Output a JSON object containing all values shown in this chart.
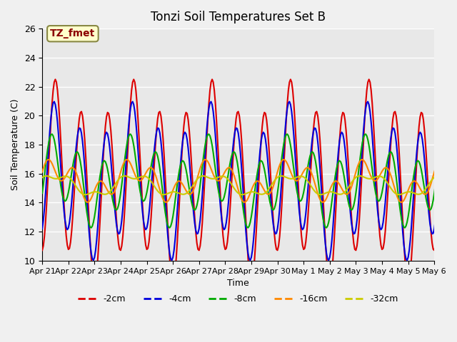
{
  "title": "Tonzi Soil Temperatures Set B",
  "xlabel": "Time",
  "ylabel": "Soil Temperature (C)",
  "annotation": "TZ_fmet",
  "ylim": [
    10,
    26
  ],
  "xlim": [
    0,
    360
  ],
  "series_colors": {
    "-2cm": "#dd0000",
    "-4cm": "#0000dd",
    "-8cm": "#00aa00",
    "-16cm": "#ff8800",
    "-32cm": "#cccc00"
  },
  "x_tick_labels": [
    "Apr 21",
    "Apr 22",
    "Apr 23",
    "Apr 24",
    "Apr 25",
    "Apr 26",
    "Apr 27",
    "Apr 28",
    "Apr 29",
    "Apr 30",
    "May 1",
    "May 2",
    "May 3",
    "May 4",
    "May 5",
    "May 6"
  ],
  "x_tick_positions": [
    0,
    24,
    48,
    72,
    96,
    120,
    144,
    168,
    192,
    216,
    240,
    264,
    288,
    312,
    336,
    360
  ],
  "background_color": "#e8e8e8",
  "plot_bg_color": "#e8e8e8",
  "grid_color": "#ffffff",
  "linewidth": 1.5
}
